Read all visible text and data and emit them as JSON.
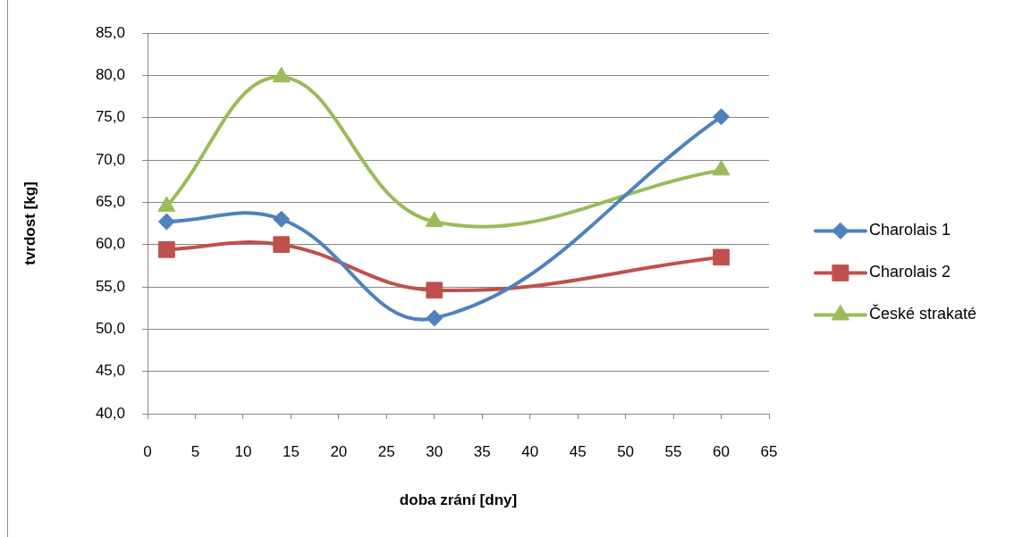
{
  "chart_data": {
    "type": "line",
    "xlabel": "doba zrání [dny]",
    "ylabel": "tvrdost [kg]",
    "x": [
      2,
      14,
      30,
      60
    ],
    "xlim": [
      0,
      65
    ],
    "xticks": [
      0,
      5,
      10,
      15,
      20,
      25,
      30,
      35,
      40,
      45,
      50,
      55,
      60,
      65
    ],
    "ylim": [
      40,
      85
    ],
    "yticks": [
      {
        "value": 40,
        "label": "40,0"
      },
      {
        "value": 45,
        "label": "45,0"
      },
      {
        "value": 50,
        "label": "50,0"
      },
      {
        "value": 55,
        "label": "55,0"
      },
      {
        "value": 60,
        "label": "60,0"
      },
      {
        "value": 65,
        "label": "65,0"
      },
      {
        "value": 70,
        "label": "70,0"
      },
      {
        "value": 75,
        "label": "75,0"
      },
      {
        "value": 80,
        "label": "80,0"
      },
      {
        "value": 85,
        "label": "85,0"
      }
    ],
    "grid": "y",
    "legend": "right",
    "series": [
      {
        "name": "Charolais 1",
        "color": "#4f81bd",
        "marker": "diamond",
        "values": [
          62.7,
          63.0,
          51.3,
          75.1
        ]
      },
      {
        "name": "Charolais 2",
        "color": "#c0504d",
        "marker": "square",
        "values": [
          59.4,
          60.0,
          54.6,
          58.5
        ]
      },
      {
        "name": "České strakaté",
        "color": "#9bbb59",
        "marker": "triangle",
        "values": [
          64.5,
          79.8,
          62.7,
          68.8
        ]
      }
    ]
  }
}
